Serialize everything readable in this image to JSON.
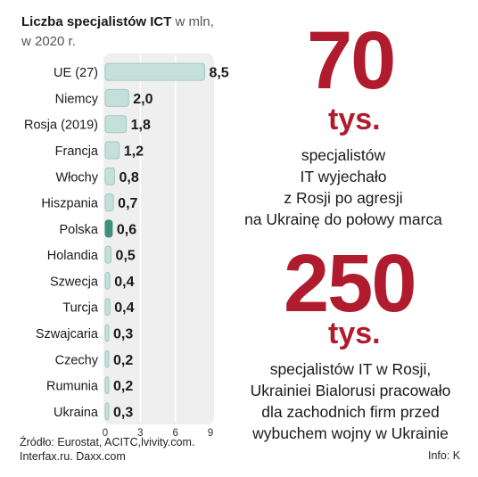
{
  "header": {
    "title_bold": "Liczba specjalistów ICT",
    "title_rest": " w mln,",
    "subtitle": "w 2020 r."
  },
  "chart_data": {
    "type": "bar",
    "orientation": "horizontal",
    "title": "Liczba specjalistów ICT w mln, w 2020 r.",
    "categories": [
      "UE (27)",
      "Niemcy",
      "Rosja (2019)",
      "Francja",
      "Włochy",
      "Hiszpania",
      "Polska",
      "Holandia",
      "Szwecja",
      "Turcja",
      "Szwajcaria",
      "Czechy",
      "Rumunia",
      "Ukraina"
    ],
    "values": [
      8.5,
      2.0,
      1.8,
      1.2,
      0.8,
      0.7,
      0.6,
      0.5,
      0.4,
      0.4,
      0.3,
      0.2,
      0.2,
      0.3
    ],
    "value_labels": [
      "8,5",
      "2,0",
      "1,8",
      "1,2",
      "0,8",
      "0,7",
      "0,6",
      "0,5",
      "0,4",
      "0,4",
      "0,3",
      "0,2",
      "0,2",
      "0,3"
    ],
    "highlight": "Polska",
    "xlim": [
      0,
      9
    ],
    "xticks": [
      0,
      3,
      6,
      9
    ],
    "grid": true,
    "colors": {
      "bar": "#c5e0da",
      "bar_border": "#9fc9bf",
      "highlight": "#3f8f7f",
      "panel": "#efefef",
      "grid": "#ffffff"
    }
  },
  "stats": [
    {
      "number": "70",
      "unit": "tys.",
      "description": "specjalistów\nIT wyjechało\nz Rosji po agresji\nna Ukrainę do połowy marca"
    },
    {
      "number": "250",
      "unit": "tys.",
      "description": "specjalistów IT w Rosji,\nUkrainiei Bialorusi pracowało\ndla zachodnich firm przed\nwybuchem wojny w Ukrainie"
    }
  ],
  "accent_color": "#b01c2e",
  "footer": {
    "source": "Źródło:  Eurostat, ACITC,lvivity.com. Interfax.ru. Daxx.com",
    "info": "Info: K"
  }
}
